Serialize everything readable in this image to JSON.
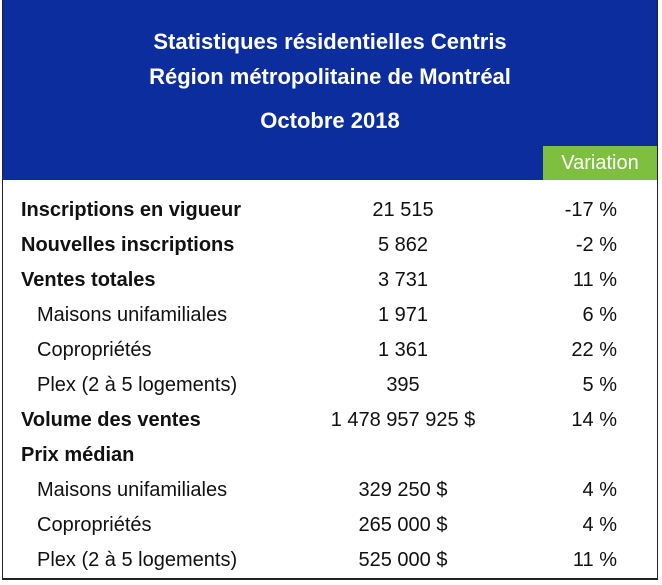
{
  "header": {
    "title_line1": "Statistiques résidentielles Centris",
    "title_line2": "Région métropolitaine de Montréal",
    "title_line3": "Octobre 2018",
    "variation_label": "Variation"
  },
  "rows": [
    {
      "label": "Inscriptions en vigueur",
      "value": "21 515",
      "variation": "-17 %"
    },
    {
      "label": "Nouvelles inscriptions",
      "value": "5 862",
      "variation": "-2 %"
    },
    {
      "label": "Ventes totales",
      "value": "3 731",
      "variation": "11 %"
    },
    {
      "label": "Maisons unifamiliales",
      "value": "1 971",
      "variation": "6 %"
    },
    {
      "label": "Copropriétés",
      "value": "1 361",
      "variation": "22 %"
    },
    {
      "label": "Plex (2 à 5 logements)",
      "value": "395",
      "variation": "5 %"
    },
    {
      "label": "Volume des ventes",
      "value": "1 478 957 925 $",
      "variation": "14 %"
    },
    {
      "label": "Prix médian",
      "value": "",
      "variation": ""
    },
    {
      "label": "Maisons unifamiliales",
      "value": "329 250 $",
      "variation": "4 %"
    },
    {
      "label": "Copropriétés",
      "value": "265 000 $",
      "variation": "4 %"
    },
    {
      "label": "Plex (2 à 5 logements)",
      "value": "525 000 $",
      "variation": "11 %"
    }
  ]
}
